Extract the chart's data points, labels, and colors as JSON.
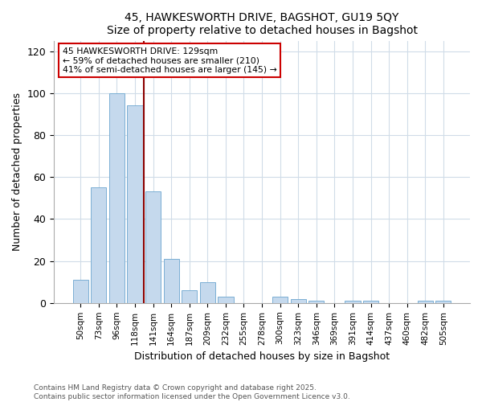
{
  "title1": "45, HAWKESWORTH DRIVE, BAGSHOT, GU19 5QY",
  "title2": "Size of property relative to detached houses in Bagshot",
  "xlabel": "Distribution of detached houses by size in Bagshot",
  "ylabel": "Number of detached properties",
  "categories": [
    "50sqm",
    "73sqm",
    "96sqm",
    "118sqm",
    "141sqm",
    "164sqm",
    "187sqm",
    "209sqm",
    "232sqm",
    "255sqm",
    "278sqm",
    "300sqm",
    "323sqm",
    "346sqm",
    "369sqm",
    "391sqm",
    "414sqm",
    "437sqm",
    "460sqm",
    "482sqm",
    "505sqm"
  ],
  "values": [
    11,
    55,
    100,
    94,
    53,
    21,
    6,
    10,
    3,
    0,
    0,
    3,
    2,
    1,
    0,
    1,
    1,
    0,
    0,
    1,
    1
  ],
  "bar_color": "#c5d9ed",
  "bar_edge_color": "#7bafd4",
  "vline_color": "#8b0000",
  "vline_x_index": 3,
  "annotation_title": "45 HAWKESWORTH DRIVE: 129sqm",
  "annotation_line2": "← 59% of detached houses are smaller (210)",
  "annotation_line3": "41% of semi-detached houses are larger (145) →",
  "annotation_box_color": "#ffffff",
  "annotation_box_edge": "#cc0000",
  "ylim": [
    0,
    125
  ],
  "yticks": [
    0,
    20,
    40,
    60,
    80,
    100,
    120
  ],
  "footnote1": "Contains HM Land Registry data © Crown copyright and database right 2025.",
  "footnote2": "Contains public sector information licensed under the Open Government Licence v3.0.",
  "bg_color": "#ffffff",
  "plot_bg_color": "#ffffff",
  "grid_color": "#d0dce8"
}
